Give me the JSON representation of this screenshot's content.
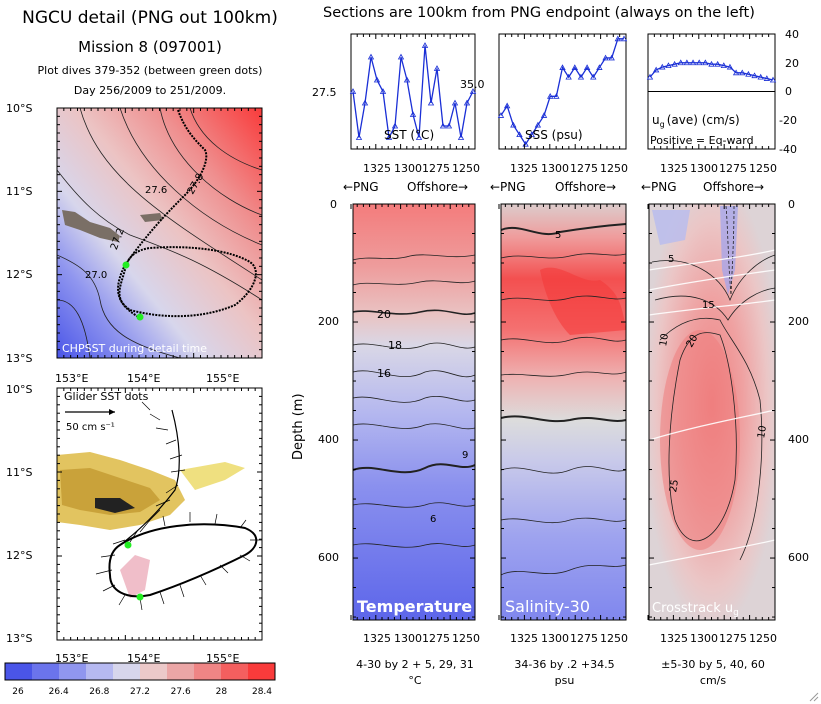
{
  "header": {
    "title": "NGCU detail (PNG out 100km)",
    "mission": "Mission 8 (097001)",
    "dives": "Plot dives 379-352 (between green dots)",
    "days": "Day 256/2009 to 251/2009.",
    "sections_title": "Sections are 100km from PNG endpoint (always on the left)"
  },
  "map_top": {
    "lat_labels": [
      "10°S",
      "11°S",
      "12°S",
      "13°S"
    ],
    "lon_labels": [
      "153°E",
      "154°E",
      "155°E"
    ],
    "overlay_label": "CHPSST during detail time",
    "contour_labels": [
      "27.6",
      "27.8",
      "27.2",
      "27.0"
    ],
    "colors": [
      "#4a55e8",
      "#6b74ec",
      "#9096ef",
      "#b6b9f1",
      "#d7d6ec",
      "#ecc9c9",
      "#eba6a6",
      "#ef8585",
      "#f45f5f",
      "#f93b3b"
    ]
  },
  "map_bottom": {
    "lat_labels": [
      "10°S",
      "11°S",
      "12°S",
      "13°S"
    ],
    "lon_labels": [
      "153°E",
      "154°E",
      "155°E"
    ],
    "legend_title": "Glider SST dots",
    "scale_label": "50 cm s⁻¹"
  },
  "colorbar": {
    "ticks": [
      "26",
      "26.4",
      "26.8",
      "27.2",
      "27.6",
      "28",
      "28.4"
    ]
  },
  "top_panels": {
    "sst": {
      "label": "SST (°C)",
      "ytick": "27.5"
    },
    "sss": {
      "label": "SSS (psu)",
      "ytick": "35.0"
    },
    "ug": {
      "label_main": "u",
      "label_sub": "g",
      "label_tail": "(ave) (cm/s)",
      "note": "Positive = Eq-ward"
    },
    "xticks": [
      "1325",
      "1300",
      "1275",
      "1250"
    ],
    "right_axis": [
      "40",
      "20",
      "0",
      "-20",
      "-40"
    ]
  },
  "sections": {
    "direction_left": "←PNG",
    "direction_right": "Offshore→",
    "ylabel": "Depth (m)",
    "depth_left": [
      "0",
      "200",
      "400",
      "600"
    ],
    "depth_right": [
      "0",
      "200",
      "400",
      "600"
    ],
    "xticks": [
      "1325",
      "1300",
      "1275",
      "1250"
    ],
    "temperature": {
      "label": "Temperature",
      "contour_labels": [
        "20",
        "18",
        "16",
        "9",
        "6"
      ],
      "footer_line1": "4-30 by 2 + 5, 29, 31",
      "footer_line2": "°C"
    },
    "salinity": {
      "label": "Salinity-30",
      "contour_labels": [
        "5"
      ],
      "footer_line1": "34-36 by .2 +34.5",
      "footer_line2": "psu"
    },
    "crosstrack": {
      "label_main": "Crosstrack u",
      "label_sub": "g",
      "contour_labels": [
        "5",
        "15",
        "10",
        "20",
        "25",
        "10"
      ],
      "footer_line1": "±5-30 by 5, 40, 60",
      "footer_line2": "cm/s"
    }
  },
  "chart_data": [
    {
      "type": "line",
      "title": "",
      "xlabel": "",
      "ylabel": "SST (°C)",
      "x": [
        1345,
        1340,
        1335,
        1330,
        1325,
        1320,
        1315,
        1310,
        1305,
        1300,
        1295,
        1290,
        1285,
        1280,
        1275,
        1270,
        1265,
        1260,
        1255,
        1250,
        1245
      ],
      "values": [
        27.6,
        27.2,
        27.5,
        27.9,
        27.7,
        27.6,
        27.2,
        27.3,
        27.9,
        27.7,
        27.4,
        27.2,
        28.0,
        27.5,
        27.8,
        27.3,
        27.3,
        27.5,
        27.2,
        27.5,
        27.6
      ],
      "x_direction": "reversed"
    },
    {
      "type": "line",
      "title": "",
      "xlabel": "",
      "ylabel": "SSS (psu)",
      "x": [
        1345,
        1340,
        1335,
        1330,
        1325,
        1320,
        1315,
        1310,
        1305,
        1300,
        1295,
        1290,
        1285,
        1280,
        1275,
        1270,
        1265,
        1260,
        1255,
        1250,
        1245
      ],
      "values": [
        34.8,
        34.9,
        34.7,
        34.6,
        34.5,
        34.6,
        34.7,
        34.8,
        35.0,
        35.0,
        35.3,
        35.2,
        35.3,
        35.2,
        35.3,
        35.2,
        35.3,
        35.4,
        35.4,
        35.6,
        35.6
      ],
      "x_direction": "reversed"
    },
    {
      "type": "line",
      "title": "",
      "xlabel": "",
      "ylabel": "ug(ave) (cm/s)",
      "x": [
        1345,
        1340,
        1335,
        1330,
        1325,
        1320,
        1315,
        1310,
        1305,
        1300,
        1295,
        1290,
        1285,
        1280,
        1275,
        1270,
        1265,
        1260,
        1255,
        1250,
        1245
      ],
      "values": [
        10,
        15,
        17,
        18,
        19,
        20,
        20,
        20,
        20,
        20,
        19,
        19,
        18,
        17,
        13,
        13,
        12,
        11,
        10,
        9,
        8
      ],
      "ylim": [
        -40,
        40
      ],
      "x_direction": "reversed"
    }
  ]
}
